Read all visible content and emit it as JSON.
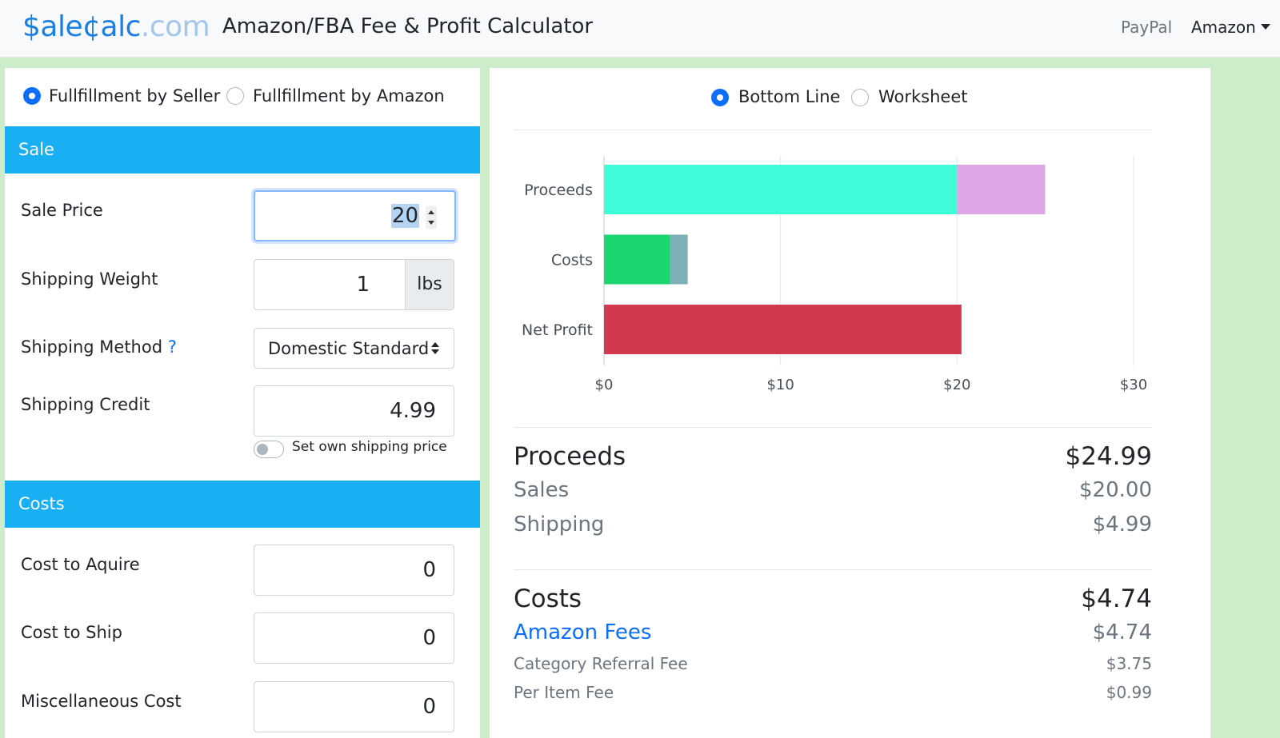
{
  "header": {
    "logo_part1": "$ale¢alc",
    "logo_part2": ".com",
    "title": "Amazon/FBA Fee & Profit Calculator",
    "nav_paypal": "PayPal",
    "nav_amazon": "Amazon"
  },
  "fulfillment": {
    "options": [
      "Fullfillment by Seller",
      "Fullfillment by Amazon"
    ],
    "selected": "Fullfillment by Seller"
  },
  "sale": {
    "section_title": "Sale",
    "sale_price_label": "Sale Price",
    "sale_price_value": "20",
    "shipping_weight_label": "Shipping Weight",
    "shipping_weight_value": "1",
    "shipping_weight_unit": "lbs",
    "shipping_method_label": "Shipping Method",
    "shipping_method_help": "?",
    "shipping_method_value": "Domestic Standard",
    "shipping_credit_label": "Shipping Credit",
    "shipping_credit_value": "4.99",
    "own_shipping_toggle_label": "Set own shipping price",
    "own_shipping_enabled": false
  },
  "costs_form": {
    "section_title": "Costs",
    "cost_to_acquire_label": "Cost to Aquire",
    "cost_to_acquire_value": "0",
    "cost_to_ship_label": "Cost to Ship",
    "cost_to_ship_value": "0",
    "misc_cost_label": "Miscellaneous Cost",
    "misc_cost_value": "0"
  },
  "view_toggle": {
    "options": [
      "Bottom Line",
      "Worksheet"
    ],
    "selected": "Bottom Line"
  },
  "chart_data": {
    "type": "bar",
    "orientation": "horizontal",
    "stacked": true,
    "categories": [
      "Proceeds",
      "Costs",
      "Net Profit"
    ],
    "series": [
      {
        "values": [
          20.0,
          3.75,
          20.25
        ],
        "colors": [
          "#40fdd9",
          "#1ad66f",
          "#d2394f"
        ]
      },
      {
        "values": [
          4.99,
          0.99,
          0
        ],
        "colors": [
          "#dea5e7",
          "#7bb1b4",
          "#d2394f"
        ]
      }
    ],
    "xlim": [
      0,
      30
    ],
    "xticks": [
      "$0",
      "$10",
      "$20",
      "$30"
    ],
    "grid": true
  },
  "summary": {
    "proceeds_label": "Proceeds",
    "proceeds_value": "$24.99",
    "sales_label": "Sales",
    "sales_value": "$20.00",
    "shipping_label": "Shipping",
    "shipping_value": "$4.99",
    "costs_label": "Costs",
    "costs_value": "$4.74",
    "amazon_fees_label": "Amazon Fees",
    "amazon_fees_value": "$4.74",
    "referral_fee_label": "Category Referral Fee",
    "referral_fee_value": "$3.75",
    "per_item_fee_label": "Per Item Fee",
    "per_item_fee_value": "$0.99"
  }
}
